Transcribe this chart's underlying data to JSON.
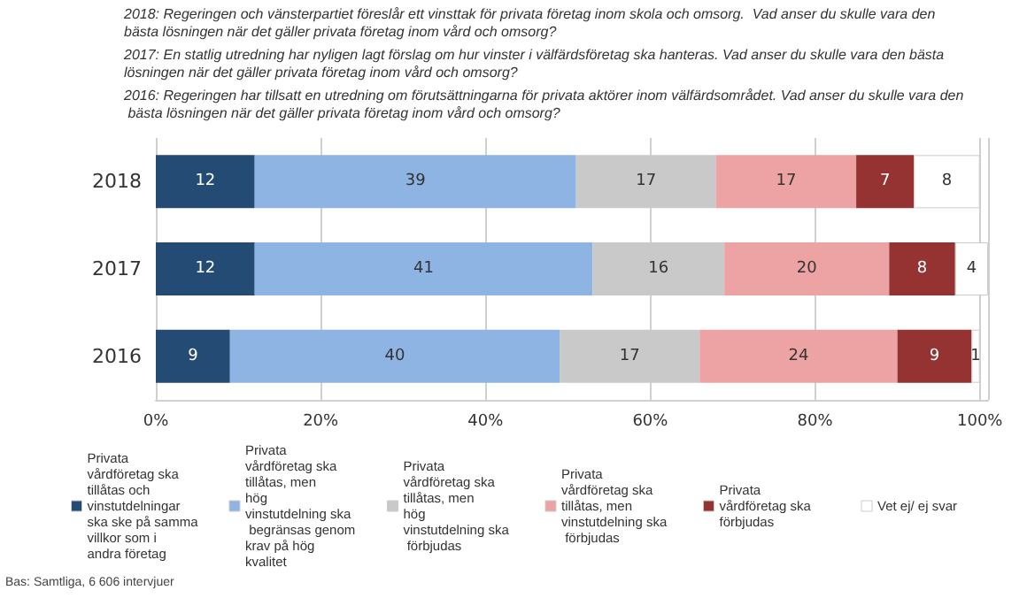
{
  "chart_data": {
    "type": "bar",
    "orientation": "horizontal",
    "stacked": true,
    "categories": [
      "2018",
      "2017",
      "2016"
    ],
    "series": [
      {
        "name": "Privata vårdföretag ska tillåtas och vinstutdelningar ska ske på samma villkor som i andra företag",
        "color": "#234b73",
        "values": [
          12,
          12,
          9
        ]
      },
      {
        "name": "Privata vårdföretag ska tillåtas, men hög vinstutdelning ska begränsas genom krav på hög kvalitet",
        "color": "#8db4e2",
        "values": [
          39,
          41,
          40
        ]
      },
      {
        "name": "Privata vårdföretag ska tillåtas, men hög vinstutdelning ska förbjudas",
        "color": "#c9c9c9",
        "values": [
          17,
          16,
          17
        ]
      },
      {
        "name": "Privata vårdföretag ska tillåtas, men vinstutdelning ska förbjudas",
        "color": "#eda3a3",
        "values": [
          17,
          20,
          24
        ]
      },
      {
        "name": "Privata vårdföretag ska förbjudas",
        "color": "#953232",
        "values": [
          7,
          8,
          9
        ]
      },
      {
        "name": "Vet ej/ ej svar",
        "color": "#ffffff",
        "values": [
          8,
          4,
          1
        ]
      }
    ],
    "xlim": [
      0,
      101
    ],
    "xticks": [
      {
        "value": 0,
        "label": "0%"
      },
      {
        "value": 20,
        "label": "20%"
      },
      {
        "value": 40,
        "label": "40%"
      },
      {
        "value": 60,
        "label": "60%"
      },
      {
        "value": 80,
        "label": "80%"
      },
      {
        "value": 100,
        "label": "100%"
      }
    ],
    "grid": "x",
    "data_labels": true,
    "legend": "bottom",
    "annotations": [
      "2018: Regeringen och vänsterpartiet föreslår ett vinsttak för privata företag inom skola och omsorg.  Vad anser du skulle vara den bästa lösningen när det gäller privata företag inom vård och omsorg?",
      "2017: En statlig utredning har nyligen lagt förslag om hur vinster i välfärdsföretag ska hanteras. Vad anser du skulle vara den bästa lösningen när det gäller privata företag inom vård och omsorg?",
      "2016: Regeringen har tillsatt en utredning om förutsättningarna för privata aktörer inom välfärdsområdet. Vad anser du skulle vara den bästa lösningen när det gäller privata företag inom vård och omsorg?",
      "Bas: Samtliga, 6 606 intervjuer"
    ]
  }
}
